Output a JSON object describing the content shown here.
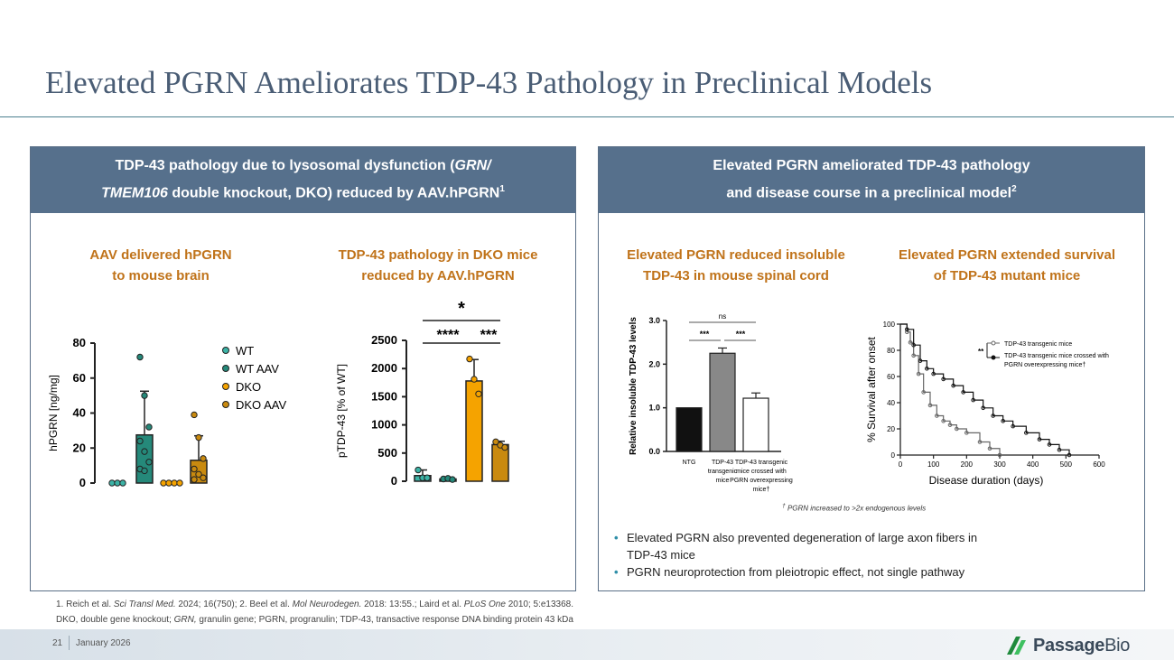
{
  "title": "Elevated PGRN Ameliorates TDP-43 Pathology in Preclinical Models",
  "left_panel": {
    "header_line1_a": "TDP-43 pathology due to lysosomal dysfunction (",
    "header_line1_b": "GRN/",
    "header_line2_a": "TMEM106",
    "header_line2_b": " double knockout, DKO) reduced by AAV.hPGRN",
    "header_sup": "1",
    "sub1_line1": "AAV delivered hPGRN",
    "sub1_line2": "to mouse brain",
    "sub2_line1": "TDP-43 pathology in DKO mice",
    "sub2_line2": "reduced by AAV.hPGRN"
  },
  "right_panel": {
    "header_line1": "Elevated PGRN ameliorated TDP-43 pathology",
    "header_line2": "and disease course in a preclinical model",
    "header_sup": "2",
    "sub1_line1": "Elevated PGRN reduced insoluble",
    "sub1_line2": "TDP-43 in mouse spinal cord",
    "sub2_line1": "Elevated PGRN extended survival",
    "sub2_line2": "of TDP-43 mutant mice",
    "dagger_note": "PGRN increased to >2x endogenous levels",
    "dagger": "†",
    "bullet1_line1": "Elevated PGRN also prevented degeneration of large axon fibers in",
    "bullet1_line2": "TDP-43 mice",
    "bullet2": "PGRN neuroprotection from pleiotropic effect, not single pathway"
  },
  "footnotes": {
    "line1_a": "1. Reich et al. ",
    "line1_b": "Sci Transl Med.",
    "line1_c": " 2024; 16(750); 2. Beel et al. ",
    "line1_d": "Mol Neurodegen.",
    "line1_e": " 2018: 13:55.; Laird et al. ",
    "line1_f": "PLoS One",
    "line1_g": " 2010; 5:e13368.",
    "line2_a": "DKO, double gene knockout; ",
    "line2_b": "GRN,",
    "line2_c": " granulin gene; PGRN, progranulin; TDP-43, transactive response DNA binding protein 43 kDa"
  },
  "footer": {
    "page_number": "21",
    "date": "January 2026",
    "logo_a": "Passage",
    "logo_b": "Bio"
  },
  "colors": {
    "title": "#4a5d75",
    "panel_header": "#56708c",
    "accent_orange": "#c0731a",
    "wt": "#3cb3a6",
    "wt_aav": "#25897a",
    "dko": "#f5a300",
    "dko_aav": "#c98a0f",
    "bullet": "#2f8fa8"
  },
  "chart_data": [
    {
      "type": "bar",
      "title": "AAV delivered hPGRN to mouse brain",
      "ylabel": "hPGRN [ng/mg]",
      "ylim": [
        0,
        80
      ],
      "yticks": [
        0,
        20,
        40,
        60,
        80
      ],
      "categories": [
        "WT",
        "WT AAV",
        "DKO",
        "DKO AAV"
      ],
      "legend": [
        "WT",
        "WT AAV",
        "DKO",
        "DKO AAV"
      ],
      "values": [
        0,
        27.5,
        0,
        13
      ],
      "errors": [
        0,
        25,
        0,
        14
      ],
      "points": [
        [
          0,
          0,
          0
        ],
        [
          72,
          50,
          32,
          24,
          18,
          12,
          8,
          7
        ],
        [
          0,
          0,
          0,
          0
        ],
        [
          39,
          26,
          14,
          8,
          5,
          3,
          2
        ]
      ]
    },
    {
      "type": "bar",
      "title": "TDP-43 pathology in DKO mice reduced by AAV.hPGRN",
      "ylabel": "pTDP-43 [% of WT]",
      "ylim": [
        0,
        2500
      ],
      "yticks": [
        0,
        500,
        1000,
        1500,
        2000,
        2500
      ],
      "categories": [
        "WT",
        "WT AAV",
        "DKO",
        "DKO AAV"
      ],
      "values": [
        100,
        40,
        1780,
        650
      ],
      "errors": [
        100,
        20,
        380,
        60
      ],
      "points": [
        [
          200,
          60,
          60
        ],
        [
          40,
          50,
          30
        ],
        [
          2170,
          1810,
          1550
        ],
        [
          700,
          640,
          600
        ]
      ],
      "significance": [
        {
          "label": "*",
          "from": "WT",
          "to": "DKO AAV"
        },
        {
          "label": "****",
          "from": "WT",
          "to": "DKO"
        },
        {
          "label": "***",
          "from": "DKO",
          "to": "DKO AAV"
        }
      ]
    },
    {
      "type": "bar",
      "title": "Elevated PGRN reduced insoluble TDP-43 in mouse spinal cord",
      "ylabel": "Relative insoluble TDP-43 levels",
      "ylim": [
        0,
        3.0
      ],
      "yticks": [
        "0.0",
        "1.0",
        "2.0",
        "3.0"
      ],
      "categories": [
        "NTG",
        "TDP-43 transgenic mice",
        "TDP-43 transgenic mice crossed with PGRN overexpressing mice†"
      ],
      "values": [
        1.0,
        2.25,
        1.22
      ],
      "errors": [
        0,
        0.12,
        0.12
      ],
      "significance": [
        {
          "label": "ns",
          "from": "NTG",
          "to": "crossed"
        },
        {
          "label": "***",
          "from": "NTG",
          "to": "TDP-43"
        },
        {
          "label": "***",
          "from": "TDP-43",
          "to": "crossed"
        }
      ]
    },
    {
      "type": "line",
      "title": "Elevated PGRN extended survival of TDP-43 mutant mice",
      "xlabel": "Disease duration (days)",
      "ylabel": "% Survival after onset",
      "xlim": [
        0,
        600
      ],
      "ylim": [
        0,
        100
      ],
      "xticks": [
        0,
        100,
        200,
        300,
        400,
        500,
        600
      ],
      "yticks": [
        0,
        20,
        40,
        60,
        80,
        100
      ],
      "significance": "**",
      "series": [
        {
          "name": "TDP-43 transgenic mice",
          "x": [
            0,
            20,
            30,
            40,
            55,
            70,
            90,
            110,
            130,
            150,
            170,
            200,
            240,
            270,
            300
          ],
          "y": [
            100,
            94,
            86,
            76,
            62,
            48,
            38,
            30,
            26,
            23,
            20,
            17,
            10,
            5,
            0
          ]
        },
        {
          "name": "TDP-43 transgenic mice crossed with PGRN overexpressing mice†",
          "x": [
            0,
            20,
            40,
            60,
            80,
            100,
            130,
            160,
            190,
            220,
            250,
            280,
            310,
            340,
            380,
            420,
            450,
            480,
            510
          ],
          "y": [
            100,
            96,
            84,
            72,
            66,
            62,
            58,
            53,
            48,
            42,
            36,
            30,
            26,
            22,
            17,
            12,
            8,
            4,
            0
          ]
        }
      ]
    }
  ]
}
